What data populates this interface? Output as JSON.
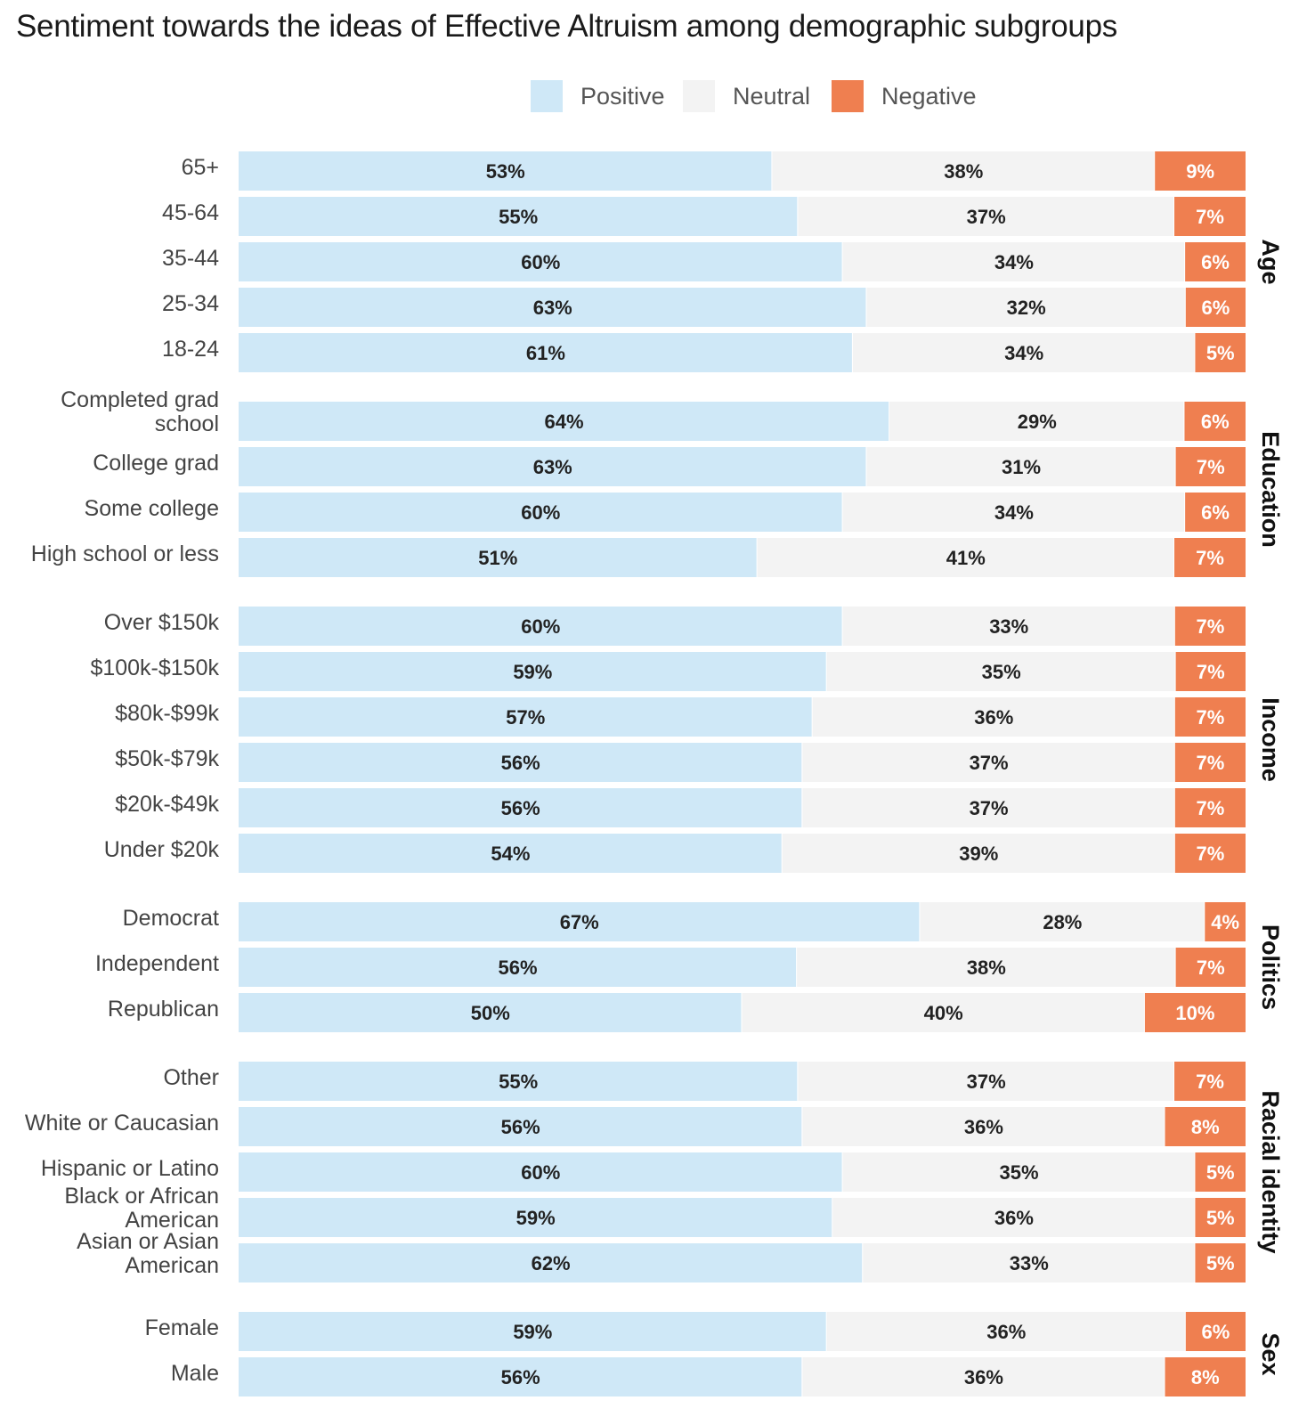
{
  "chart_data": {
    "type": "bar",
    "orientation": "horizontal",
    "stacked": true,
    "normalized": true,
    "title": "Sentiment towards the ideas of Effective Altruism among demographic subgroups",
    "xlabel": "",
    "ylabel": "",
    "xlim": [
      0,
      100
    ],
    "grid": false,
    "legend_position": "top-center",
    "series": [
      {
        "name": "Positive",
        "color": "#cfe8f7",
        "label_color": "#222222"
      },
      {
        "name": "Neutral",
        "color": "#f3f3f3",
        "label_color": "#222222"
      },
      {
        "name": "Negative",
        "color": "#ef7f50",
        "label_color": "#ffffff"
      }
    ],
    "groups": [
      {
        "name": "Age",
        "rows": [
          {
            "label": [
              "65+"
            ],
            "values": [
              53,
              38,
              9
            ]
          },
          {
            "label": [
              "45-64"
            ],
            "values": [
              55,
              37,
              7
            ]
          },
          {
            "label": [
              "35-44"
            ],
            "values": [
              60,
              34,
              6
            ]
          },
          {
            "label": [
              "25-34"
            ],
            "values": [
              63,
              32,
              6
            ]
          },
          {
            "label": [
              "18-24"
            ],
            "values": [
              61,
              34,
              5
            ]
          }
        ]
      },
      {
        "name": "Education",
        "rows": [
          {
            "label": [
              "Completed grad",
              "school"
            ],
            "values": [
              64,
              29,
              6
            ]
          },
          {
            "label": [
              "College grad"
            ],
            "values": [
              63,
              31,
              7
            ]
          },
          {
            "label": [
              "Some college"
            ],
            "values": [
              60,
              34,
              6
            ]
          },
          {
            "label": [
              "High school or less"
            ],
            "values": [
              51,
              41,
              7
            ]
          }
        ]
      },
      {
        "name": "Income",
        "rows": [
          {
            "label": [
              "Over $150k"
            ],
            "values": [
              60,
              33,
              7
            ]
          },
          {
            "label": [
              "$100k-$150k"
            ],
            "values": [
              59,
              35,
              7
            ]
          },
          {
            "label": [
              "$80k-$99k"
            ],
            "values": [
              57,
              36,
              7
            ]
          },
          {
            "label": [
              "$50k-$79k"
            ],
            "values": [
              56,
              37,
              7
            ]
          },
          {
            "label": [
              "$20k-$49k"
            ],
            "values": [
              56,
              37,
              7
            ]
          },
          {
            "label": [
              "Under $20k"
            ],
            "values": [
              54,
              39,
              7
            ]
          }
        ]
      },
      {
        "name": "Politics",
        "rows": [
          {
            "label": [
              "Democrat"
            ],
            "values": [
              67,
              28,
              4
            ]
          },
          {
            "label": [
              "Independent"
            ],
            "values": [
              56,
              38,
              7
            ]
          },
          {
            "label": [
              "Republican"
            ],
            "values": [
              50,
              40,
              10
            ]
          }
        ]
      },
      {
        "name": "Racial identity",
        "rows": [
          {
            "label": [
              "Other"
            ],
            "values": [
              55,
              37,
              7
            ]
          },
          {
            "label": [
              "White or Caucasian"
            ],
            "values": [
              56,
              36,
              8
            ]
          },
          {
            "label": [
              "Hispanic or Latino"
            ],
            "values": [
              60,
              35,
              5
            ]
          },
          {
            "label": [
              "Black or African",
              "American"
            ],
            "values": [
              59,
              36,
              5
            ]
          },
          {
            "label": [
              "Asian or Asian",
              "American"
            ],
            "values": [
              62,
              33,
              5
            ]
          }
        ]
      },
      {
        "name": "Sex",
        "rows": [
          {
            "label": [
              "Female"
            ],
            "values": [
              59,
              36,
              6
            ]
          },
          {
            "label": [
              "Male"
            ],
            "values": [
              56,
              36,
              8
            ]
          }
        ]
      }
    ],
    "value_label_suffix": "%"
  }
}
